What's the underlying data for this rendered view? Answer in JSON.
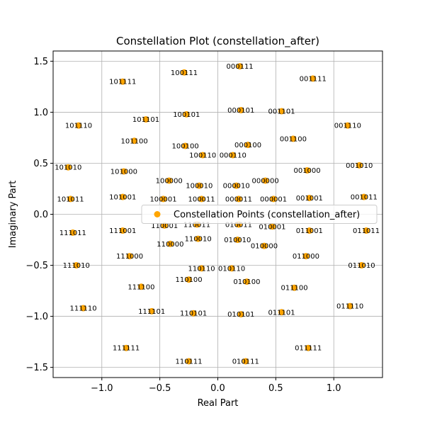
{
  "chart_data": {
    "type": "scatter",
    "title": "Constellation Plot (constellation_after)",
    "xlabel": "Real Part",
    "ylabel": "Imaginary Part",
    "xlim": [
      -1.42,
      1.42
    ],
    "ylim": [
      -1.6,
      1.6
    ],
    "xticks": [
      -1.0,
      -0.5,
      0.0,
      0.5,
      1.0
    ],
    "xtick_labels": [
      "−1.0",
      "−0.5",
      "0.0",
      "0.5",
      "1.0"
    ],
    "yticks": [
      -1.5,
      -1.0,
      -0.5,
      0.0,
      0.5,
      1.0,
      1.5
    ],
    "ytick_labels": [
      "−1.5",
      "−1.0",
      "−0.5",
      "0.0",
      "0.5",
      "1.0",
      "1.5"
    ],
    "grid": true,
    "legend_position": "center-right",
    "marker_color": "#FFA500",
    "series": [
      {
        "name": "Constellation Points (constellation_after)",
        "points": [
          {
            "x": 0.19,
            "y": 1.45,
            "label": "000111"
          },
          {
            "x": 0.82,
            "y": 1.33,
            "label": "001111"
          },
          {
            "x": -0.29,
            "y": 1.39,
            "label": "100111"
          },
          {
            "x": -0.82,
            "y": 1.3,
            "label": "101111"
          },
          {
            "x": 0.2,
            "y": 1.02,
            "label": "000101"
          },
          {
            "x": 0.55,
            "y": 1.01,
            "label": "001101"
          },
          {
            "x": -0.27,
            "y": 0.98,
            "label": "100101"
          },
          {
            "x": -0.62,
            "y": 0.93,
            "label": "101101"
          },
          {
            "x": -1.2,
            "y": 0.87,
            "label": "101110"
          },
          {
            "x": 1.12,
            "y": 0.87,
            "label": "001110"
          },
          {
            "x": 0.65,
            "y": 0.74,
            "label": "001100"
          },
          {
            "x": -0.72,
            "y": 0.72,
            "label": "101100"
          },
          {
            "x": 0.26,
            "y": 0.68,
            "label": "000100"
          },
          {
            "x": -0.28,
            "y": 0.67,
            "label": "100100"
          },
          {
            "x": -0.13,
            "y": 0.58,
            "label": "100110"
          },
          {
            "x": 0.13,
            "y": 0.58,
            "label": "000110"
          },
          {
            "x": 1.22,
            "y": 0.48,
            "label": "001010"
          },
          {
            "x": -1.29,
            "y": 0.46,
            "label": "101010"
          },
          {
            "x": 0.77,
            "y": 0.43,
            "label": "001000"
          },
          {
            "x": -0.81,
            "y": 0.42,
            "label": "101000"
          },
          {
            "x": -0.42,
            "y": 0.33,
            "label": "100000"
          },
          {
            "x": 0.41,
            "y": 0.33,
            "label": "000000"
          },
          {
            "x": -0.16,
            "y": 0.28,
            "label": "100010"
          },
          {
            "x": 0.16,
            "y": 0.28,
            "label": "000010"
          },
          {
            "x": 1.26,
            "y": 0.17,
            "label": "001011"
          },
          {
            "x": -0.82,
            "y": 0.17,
            "label": "101001"
          },
          {
            "x": 0.79,
            "y": 0.16,
            "label": "001001"
          },
          {
            "x": -1.27,
            "y": 0.15,
            "label": "101011"
          },
          {
            "x": -0.47,
            "y": 0.15,
            "label": "100001"
          },
          {
            "x": -0.14,
            "y": 0.15,
            "label": "100011"
          },
          {
            "x": 0.18,
            "y": 0.15,
            "label": "000011"
          },
          {
            "x": 0.48,
            "y": 0.15,
            "label": "000001"
          },
          {
            "x": -0.46,
            "y": -0.11,
            "label": "110001"
          },
          {
            "x": 0.47,
            "y": -0.12,
            "label": "010001"
          },
          {
            "x": -0.18,
            "y": -0.1,
            "label": "110011"
          },
          {
            "x": 0.18,
            "y": -0.1,
            "label": "010011"
          },
          {
            "x": -0.82,
            "y": -0.16,
            "label": "111001"
          },
          {
            "x": 0.79,
            "y": -0.16,
            "label": "011001"
          },
          {
            "x": 1.28,
            "y": -0.16,
            "label": "011011"
          },
          {
            "x": -1.25,
            "y": -0.18,
            "label": "111011"
          },
          {
            "x": -0.17,
            "y": -0.24,
            "label": "110010"
          },
          {
            "x": 0.17,
            "y": -0.25,
            "label": "010010"
          },
          {
            "x": -0.41,
            "y": -0.29,
            "label": "110000"
          },
          {
            "x": 0.4,
            "y": -0.31,
            "label": "010000"
          },
          {
            "x": -0.76,
            "y": -0.41,
            "label": "111000"
          },
          {
            "x": 0.76,
            "y": -0.41,
            "label": "011000"
          },
          {
            "x": -1.22,
            "y": -0.5,
            "label": "111010"
          },
          {
            "x": 1.24,
            "y": -0.5,
            "label": "011010"
          },
          {
            "x": -0.14,
            "y": -0.53,
            "label": "110110"
          },
          {
            "x": 0.12,
            "y": -0.53,
            "label": "010110"
          },
          {
            "x": -0.25,
            "y": -0.64,
            "label": "110100"
          },
          {
            "x": 0.25,
            "y": -0.66,
            "label": "010100"
          },
          {
            "x": -0.66,
            "y": -0.71,
            "label": "111100"
          },
          {
            "x": 0.66,
            "y": -0.72,
            "label": "011100"
          },
          {
            "x": -1.16,
            "y": -0.92,
            "label": "111110"
          },
          {
            "x": 1.14,
            "y": -0.9,
            "label": "011110"
          },
          {
            "x": -0.57,
            "y": -0.95,
            "label": "111101"
          },
          {
            "x": -0.21,
            "y": -0.97,
            "label": "110101"
          },
          {
            "x": 0.2,
            "y": -0.98,
            "label": "010101"
          },
          {
            "x": 0.55,
            "y": -0.96,
            "label": "011101"
          },
          {
            "x": -0.79,
            "y": -1.31,
            "label": "111111"
          },
          {
            "x": 0.78,
            "y": -1.31,
            "label": "011111"
          },
          {
            "x": -0.25,
            "y": -1.44,
            "label": "110111"
          },
          {
            "x": 0.24,
            "y": -1.44,
            "label": "010111"
          }
        ]
      }
    ]
  }
}
